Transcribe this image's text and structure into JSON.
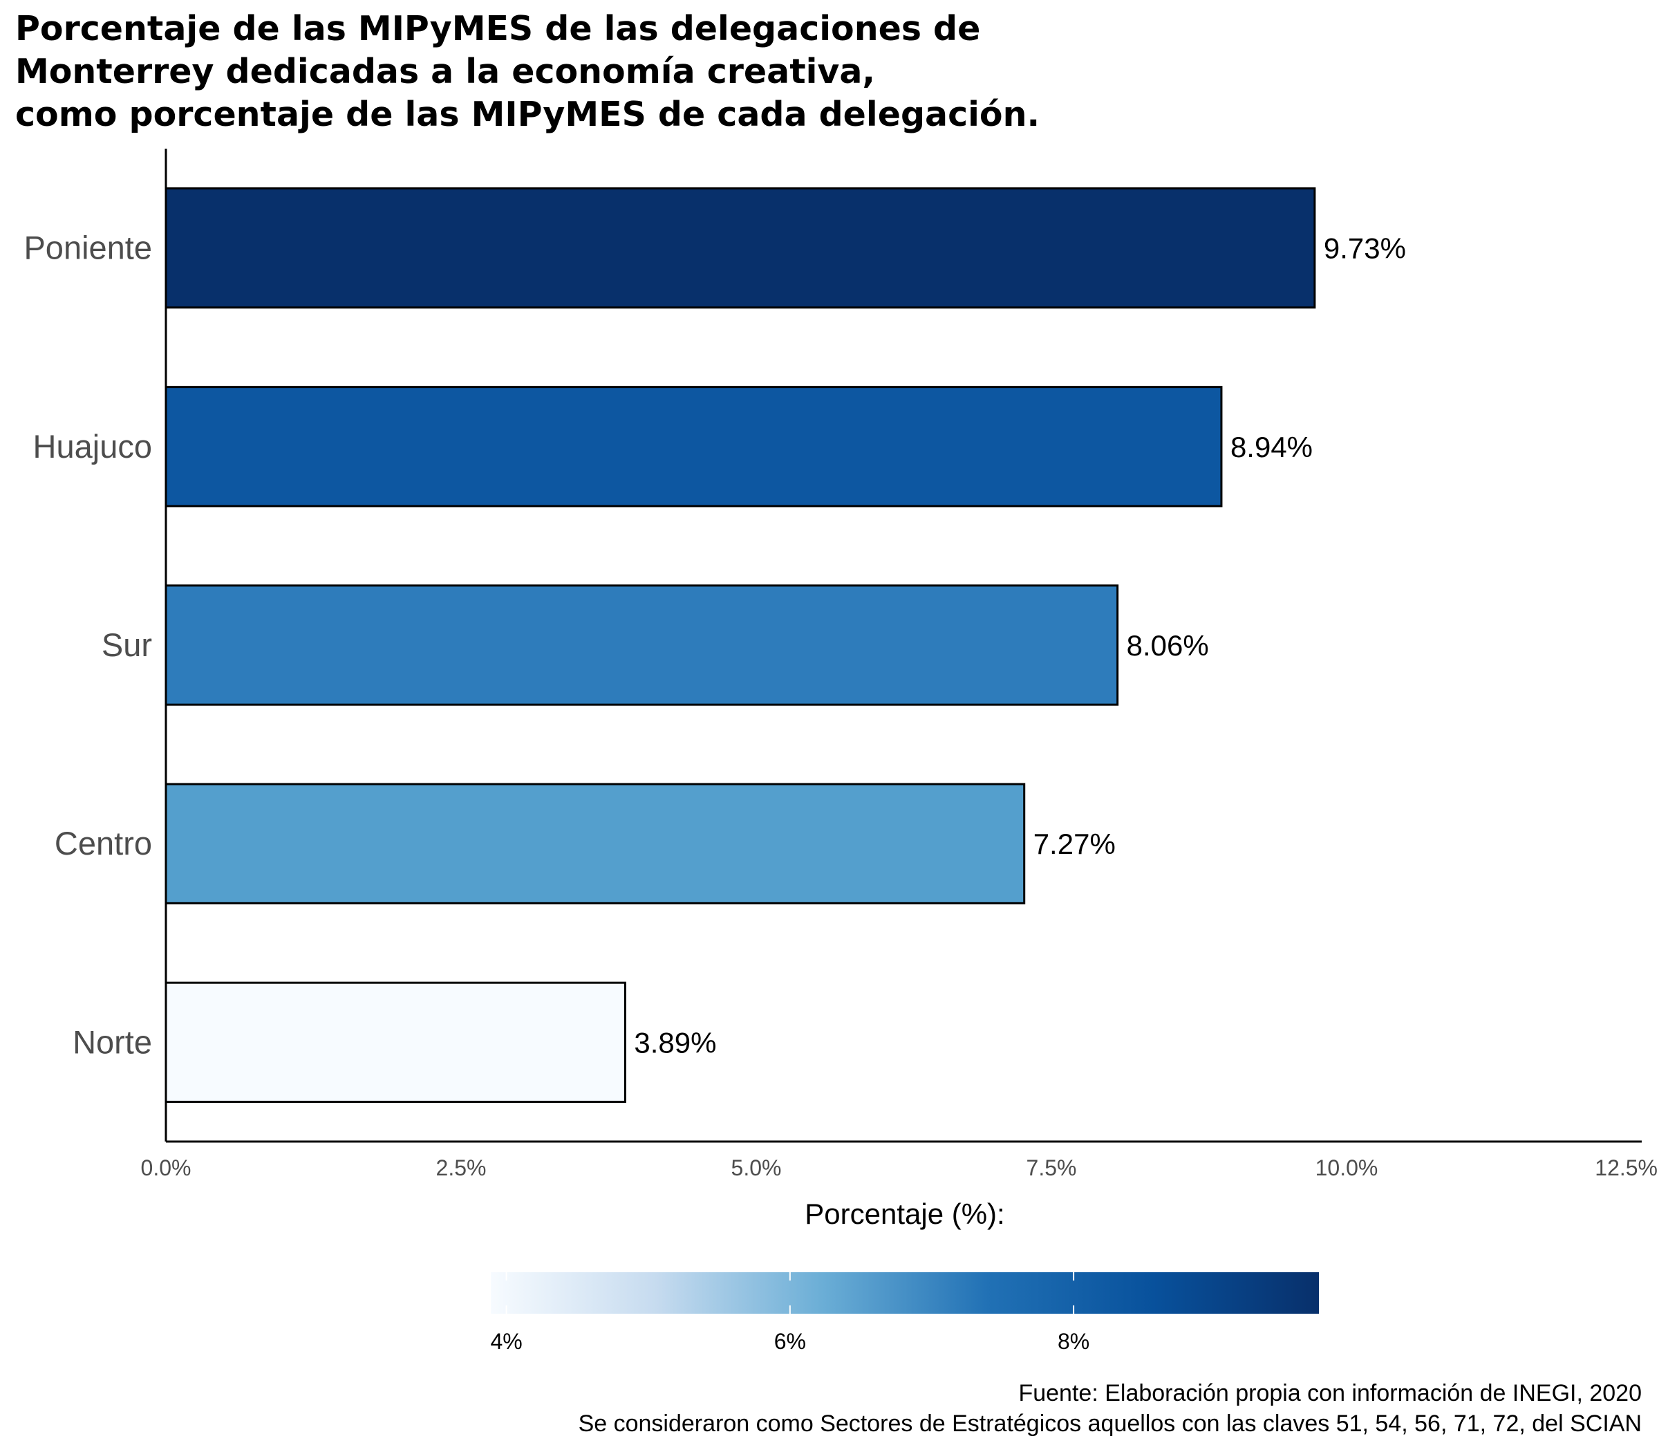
{
  "chart_data": {
    "type": "bar",
    "orientation": "horizontal",
    "title_lines": [
      "Porcentaje de las MIPyMES de las delegaciones de",
      "Monterrey dedicadas a la economía creativa,",
      "como porcentaje de las MIPyMES de cada delegación."
    ],
    "categories": [
      "Poniente",
      "Huajuco",
      "Sur",
      "Centro",
      "Norte"
    ],
    "values": [
      9.73,
      8.94,
      8.06,
      7.27,
      3.89
    ],
    "value_labels": [
      "9.73%",
      "8.94%",
      "8.06%",
      "7.27%",
      "3.89%"
    ],
    "bar_colors": [
      "#08306b",
      "#0d57a1",
      "#2e7cbb",
      "#549fcd",
      "#f7fbff"
    ],
    "xlim": [
      0,
      12.5
    ],
    "x_ticks": [
      0,
      2.5,
      5,
      7.5,
      10,
      12.5
    ],
    "x_tick_labels": [
      "0.0%",
      "2.5%",
      "5.0%",
      "7.5%",
      "10.0%",
      "12.5%"
    ],
    "grid": false,
    "legend": {
      "title": "Porcentaje (%):",
      "placement": "bottom",
      "range": [
        3.89,
        9.73
      ],
      "ticks": [
        4,
        6,
        8
      ],
      "tick_labels": [
        "4%",
        "6%",
        "8%"
      ],
      "colors": [
        "#f7fbff",
        "#c6dbef",
        "#6baed6",
        "#2171b5",
        "#08519c",
        "#08306b"
      ]
    },
    "caption_lines": [
      "Fuente: Elaboración propia con información de INEGI, 2020",
      "Se consideraron como Sectores de Estratégicos aquellos con las claves 51, 54, 56, 71, 72, del SCIAN"
    ]
  }
}
